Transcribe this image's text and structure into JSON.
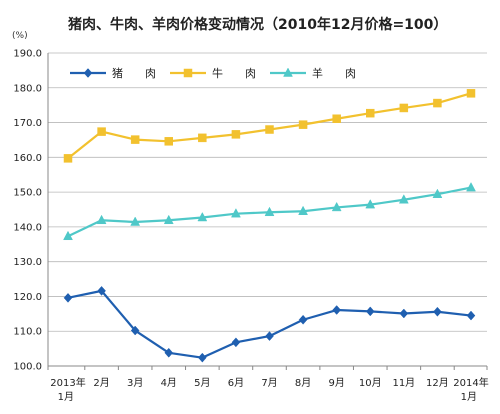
{
  "chart_data": {
    "type": "line",
    "title": "猪肉、牛肉、羊肉价格变动情况（2010年12月价格=100）",
    "unit_label": "(%)",
    "categories": [
      [
        "2013年",
        "1月"
      ],
      [
        "2月"
      ],
      [
        "3月"
      ],
      [
        "4月"
      ],
      [
        "5月"
      ],
      [
        "6月"
      ],
      [
        "7月"
      ],
      [
        "8月"
      ],
      [
        "9月"
      ],
      [
        "10月"
      ],
      [
        "11月"
      ],
      [
        "12月"
      ],
      [
        "2014年",
        "1月"
      ]
    ],
    "ylim": [
      100,
      190
    ],
    "yticks": [
      100,
      110,
      120,
      130,
      140,
      150,
      160,
      170,
      180,
      190
    ],
    "grid": true,
    "legend_position": "top-left",
    "series": [
      {
        "name": "猪　　肉",
        "color": "#1f5fb0",
        "marker": "diamond",
        "values": [
          119.6,
          121.6,
          110.2,
          103.8,
          102.4,
          106.8,
          108.6,
          113.3,
          116.1,
          115.7,
          115.1,
          115.6,
          114.5
        ]
      },
      {
        "name": "牛　　肉",
        "color": "#f2c12e",
        "marker": "square",
        "values": [
          159.7,
          167.4,
          165.1,
          164.6,
          165.6,
          166.6,
          168.0,
          169.4,
          171.1,
          172.7,
          174.2,
          175.6,
          178.4
        ]
      },
      {
        "name": "羊　　肉",
        "color": "#4fc8c8",
        "marker": "triangle",
        "values": [
          137.3,
          141.9,
          141.4,
          141.9,
          142.7,
          143.8,
          144.2,
          144.5,
          145.6,
          146.4,
          147.8,
          149.4,
          151.3
        ]
      }
    ]
  }
}
